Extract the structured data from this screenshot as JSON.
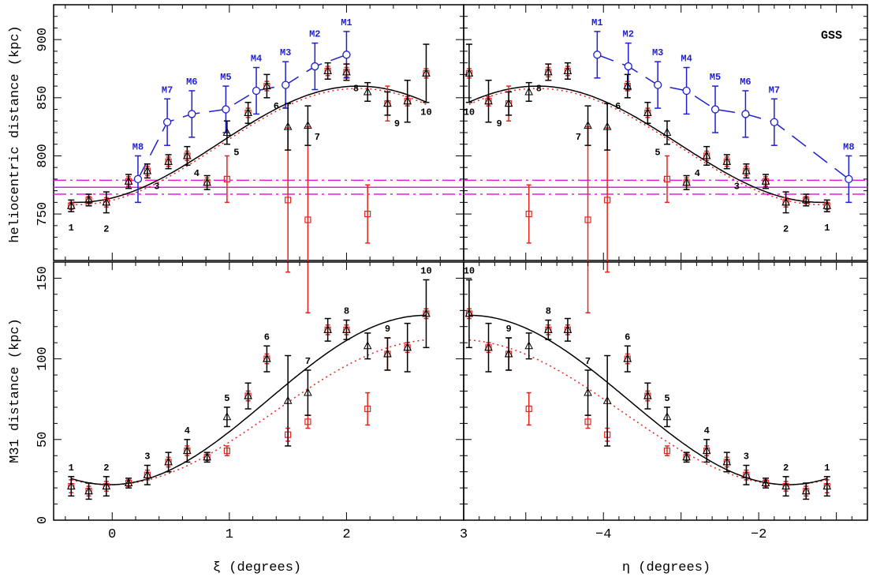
{
  "colors": {
    "black_series": "#000000",
    "red_series": "#e8231f",
    "blue_series": "#1f1fd0",
    "magenta_reference": "#e020d8"
  },
  "chart_data": [
    {
      "id": "top-left",
      "type": "scatter",
      "ylabel": "heliocentric distance (kpc)",
      "xlabel": "",
      "xlim": [
        -0.5,
        3.0
      ],
      "ylim": [
        710,
        930
      ],
      "yticks": [
        750,
        800,
        850,
        900
      ],
      "xticks": [
        0,
        1,
        2,
        3
      ],
      "annotation": "GSS",
      "reference_lines": {
        "center": 773,
        "upper": 779,
        "lower": 767
      },
      "black_points": [
        {
          "x": -0.35,
          "y": 757,
          "err": 5,
          "label": "1"
        },
        {
          "x": -0.2,
          "y": 762,
          "err": 5,
          "label": ""
        },
        {
          "x": -0.05,
          "y": 760,
          "err": 9,
          "label": "2"
        },
        {
          "x": 0.14,
          "y": 778,
          "err": 6,
          "label": ""
        },
        {
          "x": 0.3,
          "y": 787,
          "err": 6,
          "label": "3"
        },
        {
          "x": 0.48,
          "y": 795,
          "err": 6,
          "label": ""
        },
        {
          "x": 0.64,
          "y": 800,
          "err": 8,
          "label": "4"
        },
        {
          "x": 0.81,
          "y": 777,
          "err": 6,
          "label": ""
        },
        {
          "x": 0.98,
          "y": 820,
          "err": 10,
          "label": "5"
        },
        {
          "x": 1.16,
          "y": 837,
          "err": 9,
          "label": ""
        },
        {
          "x": 1.32,
          "y": 860,
          "err": 10,
          "label": "6"
        },
        {
          "x": 1.5,
          "y": 825,
          "err": 20,
          "label": ""
        },
        {
          "x": 1.67,
          "y": 826,
          "err": 17,
          "label": "7"
        },
        {
          "x": 1.84,
          "y": 873,
          "err": 7,
          "label": ""
        },
        {
          "x": 2.0,
          "y": 872,
          "err": 7,
          "label": "8"
        },
        {
          "x": 2.18,
          "y": 855,
          "err": 8,
          "label": ""
        },
        {
          "x": 2.35,
          "y": 845,
          "err": 10,
          "label": "9"
        },
        {
          "x": 2.52,
          "y": 847,
          "err": 18,
          "label": ""
        },
        {
          "x": 2.68,
          "y": 871,
          "err": 25,
          "label": "10"
        }
      ],
      "red_points": [
        {
          "x": -0.35,
          "y": 757,
          "err": 3
        },
        {
          "x": -0.2,
          "y": 762,
          "err": 3
        },
        {
          "x": -0.05,
          "y": 760,
          "err": 4
        },
        {
          "x": 0.14,
          "y": 778,
          "err": 4
        },
        {
          "x": 0.3,
          "y": 787,
          "err": 4
        },
        {
          "x": 0.48,
          "y": 795,
          "err": 4
        },
        {
          "x": 0.64,
          "y": 800,
          "err": 4
        },
        {
          "x": 0.81,
          "y": 777,
          "err": 4
        },
        {
          "x": 0.98,
          "y": 780,
          "err": 20
        },
        {
          "x": 1.16,
          "y": 837,
          "err": 4
        },
        {
          "x": 1.32,
          "y": 860,
          "err": 4
        },
        {
          "x": 1.5,
          "y": 762,
          "err": 62
        },
        {
          "x": 1.67,
          "y": 745,
          "err": 80
        },
        {
          "x": 1.84,
          "y": 873,
          "err": 4
        },
        {
          "x": 2.0,
          "y": 872,
          "err": 4
        },
        {
          "x": 2.18,
          "y": 750,
          "err": 25
        },
        {
          "x": 2.35,
          "y": 845,
          "err": 15
        },
        {
          "x": 2.52,
          "y": 847,
          "err": 4
        },
        {
          "x": 2.68,
          "y": 871,
          "err": 4
        }
      ],
      "blue_points": [
        {
          "x": 0.22,
          "y": 780,
          "err": 20,
          "label": "M8"
        },
        {
          "x": 0.47,
          "y": 829,
          "err": 20,
          "label": "M7"
        },
        {
          "x": 0.68,
          "y": 836,
          "err": 20,
          "label": "M6"
        },
        {
          "x": 0.97,
          "y": 840,
          "err": 20,
          "label": "M5"
        },
        {
          "x": 1.23,
          "y": 856,
          "err": 20,
          "label": "M4"
        },
        {
          "x": 1.48,
          "y": 861,
          "err": 20,
          "label": "M3"
        },
        {
          "x": 1.73,
          "y": 877,
          "err": 20,
          "label": "M2"
        },
        {
          "x": 2.0,
          "y": 887,
          "err": 20,
          "label": "M1"
        }
      ]
    },
    {
      "id": "top-right",
      "type": "scatter",
      "ylabel": "",
      "xlabel": "",
      "xlim": [
        -5.8,
        -0.6
      ],
      "ylim": [
        710,
        930
      ],
      "xticks": [
        -4,
        -2
      ],
      "reference_lines": {
        "center": 773,
        "upper": 779,
        "lower": 767
      },
      "black_points": [
        {
          "x": -5.73,
          "y": 871,
          "err": 25,
          "label": "10"
        },
        {
          "x": -5.48,
          "y": 847,
          "err": 18,
          "label": ""
        },
        {
          "x": -5.22,
          "y": 845,
          "err": 10,
          "label": "9"
        },
        {
          "x": -4.96,
          "y": 855,
          "err": 8,
          "label": ""
        },
        {
          "x": -4.71,
          "y": 872,
          "err": 7,
          "label": "8"
        },
        {
          "x": -4.46,
          "y": 873,
          "err": 7,
          "label": ""
        },
        {
          "x": -4.2,
          "y": 826,
          "err": 17,
          "label": "7"
        },
        {
          "x": -3.95,
          "y": 825,
          "err": 20,
          "label": ""
        },
        {
          "x": -3.69,
          "y": 860,
          "err": 10,
          "label": "6"
        },
        {
          "x": -3.43,
          "y": 837,
          "err": 9,
          "label": ""
        },
        {
          "x": -3.18,
          "y": 820,
          "err": 10,
          "label": "5"
        },
        {
          "x": -2.93,
          "y": 777,
          "err": 6,
          "label": ""
        },
        {
          "x": -2.67,
          "y": 800,
          "err": 8,
          "label": "4"
        },
        {
          "x": -2.41,
          "y": 795,
          "err": 6,
          "label": ""
        },
        {
          "x": -2.16,
          "y": 787,
          "err": 6,
          "label": "3"
        },
        {
          "x": -1.91,
          "y": 778,
          "err": 6,
          "label": ""
        },
        {
          "x": -1.65,
          "y": 760,
          "err": 9,
          "label": "2"
        },
        {
          "x": -1.39,
          "y": 762,
          "err": 5,
          "label": ""
        },
        {
          "x": -1.12,
          "y": 757,
          "err": 5,
          "label": "1"
        }
      ],
      "red_points": [
        {
          "x": -5.73,
          "y": 871,
          "err": 4
        },
        {
          "x": -5.48,
          "y": 847,
          "err": 4
        },
        {
          "x": -5.22,
          "y": 845,
          "err": 15
        },
        {
          "x": -4.96,
          "y": 750,
          "err": 25
        },
        {
          "x": -4.71,
          "y": 872,
          "err": 4
        },
        {
          "x": -4.46,
          "y": 873,
          "err": 4
        },
        {
          "x": -4.2,
          "y": 745,
          "err": 80
        },
        {
          "x": -3.95,
          "y": 762,
          "err": 62
        },
        {
          "x": -3.69,
          "y": 860,
          "err": 4
        },
        {
          "x": -3.43,
          "y": 837,
          "err": 4
        },
        {
          "x": -3.18,
          "y": 780,
          "err": 20
        },
        {
          "x": -2.93,
          "y": 777,
          "err": 4
        },
        {
          "x": -2.67,
          "y": 800,
          "err": 4
        },
        {
          "x": -2.41,
          "y": 795,
          "err": 4
        },
        {
          "x": -2.16,
          "y": 787,
          "err": 4
        },
        {
          "x": -1.91,
          "y": 778,
          "err": 4
        },
        {
          "x": -1.65,
          "y": 760,
          "err": 4
        },
        {
          "x": -1.39,
          "y": 762,
          "err": 3
        },
        {
          "x": -1.12,
          "y": 757,
          "err": 3
        }
      ],
      "blue_points": [
        {
          "x": -4.08,
          "y": 887,
          "err": 20,
          "label": "M1"
        },
        {
          "x": -3.68,
          "y": 877,
          "err": 20,
          "label": "M2"
        },
        {
          "x": -3.3,
          "y": 861,
          "err": 20,
          "label": "M3"
        },
        {
          "x": -2.93,
          "y": 856,
          "err": 20,
          "label": "M4"
        },
        {
          "x": -2.56,
          "y": 840,
          "err": 20,
          "label": "M5"
        },
        {
          "x": -2.17,
          "y": 836,
          "err": 20,
          "label": "M6"
        },
        {
          "x": -1.8,
          "y": 829,
          "err": 20,
          "label": "M7"
        },
        {
          "x": -0.84,
          "y": 780,
          "err": 20,
          "label": "M8"
        }
      ]
    },
    {
      "id": "bottom-left",
      "type": "scatter",
      "ylabel": "M31 distance (kpc)",
      "xlabel": "ξ (degrees)",
      "xlim": [
        -0.5,
        3.0
      ],
      "ylim": [
        0,
        160
      ],
      "yticks": [
        0,
        50,
        100,
        150
      ],
      "xticks": [
        0,
        1,
        2,
        3
      ],
      "black_points": [
        {
          "x": -0.35,
          "y": 21,
          "err": 6,
          "label": "1"
        },
        {
          "x": -0.2,
          "y": 18,
          "err": 5,
          "label": ""
        },
        {
          "x": -0.05,
          "y": 21,
          "err": 6,
          "label": "2"
        },
        {
          "x": 0.14,
          "y": 23,
          "err": 3,
          "label": ""
        },
        {
          "x": 0.3,
          "y": 28,
          "err": 6,
          "label": "3"
        },
        {
          "x": 0.48,
          "y": 36,
          "err": 6,
          "label": ""
        },
        {
          "x": 0.64,
          "y": 43,
          "err": 7,
          "label": "4"
        },
        {
          "x": 0.81,
          "y": 39,
          "err": 3,
          "label": ""
        },
        {
          "x": 0.98,
          "y": 64,
          "err": 6,
          "label": "5"
        },
        {
          "x": 1.16,
          "y": 77,
          "err": 8,
          "label": ""
        },
        {
          "x": 1.32,
          "y": 100,
          "err": 8,
          "label": "6"
        },
        {
          "x": 1.5,
          "y": 74,
          "err": 28,
          "label": ""
        },
        {
          "x": 1.67,
          "y": 79,
          "err": 14,
          "label": "7"
        },
        {
          "x": 1.84,
          "y": 118,
          "err": 7,
          "label": ""
        },
        {
          "x": 2.0,
          "y": 118,
          "err": 6,
          "label": "8"
        },
        {
          "x": 2.18,
          "y": 108,
          "err": 8,
          "label": ""
        },
        {
          "x": 2.35,
          "y": 103,
          "err": 10,
          "label": "9"
        },
        {
          "x": 2.52,
          "y": 107,
          "err": 15,
          "label": ""
        },
        {
          "x": 2.68,
          "y": 128,
          "err": 21,
          "label": "10"
        }
      ],
      "red_points": [
        {
          "x": -0.35,
          "y": 21,
          "err": 4
        },
        {
          "x": -0.2,
          "y": 18,
          "err": 3
        },
        {
          "x": -0.05,
          "y": 21,
          "err": 3
        },
        {
          "x": 0.14,
          "y": 23,
          "err": 2
        },
        {
          "x": 0.3,
          "y": 28,
          "err": 3
        },
        {
          "x": 0.48,
          "y": 36,
          "err": 3
        },
        {
          "x": 0.64,
          "y": 43,
          "err": 3
        },
        {
          "x": 0.81,
          "y": 39,
          "err": 2
        },
        {
          "x": 0.98,
          "y": 43,
          "err": 3
        },
        {
          "x": 1.16,
          "y": 77,
          "err": 3
        },
        {
          "x": 1.32,
          "y": 100,
          "err": 3
        },
        {
          "x": 1.5,
          "y": 53,
          "err": 4
        },
        {
          "x": 1.67,
          "y": 61,
          "err": 4
        },
        {
          "x": 1.84,
          "y": 118,
          "err": 3
        },
        {
          "x": 2.0,
          "y": 118,
          "err": 3
        },
        {
          "x": 2.18,
          "y": 69,
          "err": 10
        },
        {
          "x": 2.35,
          "y": 103,
          "err": 10
        },
        {
          "x": 2.52,
          "y": 107,
          "err": 3
        },
        {
          "x": 2.68,
          "y": 128,
          "err": 3
        }
      ]
    },
    {
      "id": "bottom-right",
      "type": "scatter",
      "ylabel": "",
      "xlabel": "η (degrees)",
      "xlim": [
        -5.8,
        -0.6
      ],
      "ylim": [
        0,
        160
      ],
      "xticks": [
        -4,
        -2
      ],
      "black_points": [
        {
          "x": -5.73,
          "y": 128,
          "err": 21,
          "label": "10"
        },
        {
          "x": -5.48,
          "y": 107,
          "err": 15,
          "label": ""
        },
        {
          "x": -5.22,
          "y": 103,
          "err": 10,
          "label": "9"
        },
        {
          "x": -4.96,
          "y": 108,
          "err": 8,
          "label": ""
        },
        {
          "x": -4.71,
          "y": 118,
          "err": 6,
          "label": "8"
        },
        {
          "x": -4.46,
          "y": 118,
          "err": 7,
          "label": ""
        },
        {
          "x": -4.2,
          "y": 79,
          "err": 14,
          "label": "7"
        },
        {
          "x": -3.95,
          "y": 74,
          "err": 28,
          "label": ""
        },
        {
          "x": -3.69,
          "y": 100,
          "err": 8,
          "label": "6"
        },
        {
          "x": -3.43,
          "y": 77,
          "err": 8,
          "label": ""
        },
        {
          "x": -3.18,
          "y": 64,
          "err": 6,
          "label": "5"
        },
        {
          "x": -2.93,
          "y": 39,
          "err": 3,
          "label": ""
        },
        {
          "x": -2.67,
          "y": 43,
          "err": 7,
          "label": "4"
        },
        {
          "x": -2.41,
          "y": 36,
          "err": 6,
          "label": ""
        },
        {
          "x": -2.16,
          "y": 28,
          "err": 6,
          "label": "3"
        },
        {
          "x": -1.91,
          "y": 23,
          "err": 3,
          "label": ""
        },
        {
          "x": -1.65,
          "y": 21,
          "err": 6,
          "label": "2"
        },
        {
          "x": -1.39,
          "y": 18,
          "err": 5,
          "label": ""
        },
        {
          "x": -1.12,
          "y": 21,
          "err": 6,
          "label": "1"
        }
      ],
      "red_points": [
        {
          "x": -5.73,
          "y": 128,
          "err": 3
        },
        {
          "x": -5.48,
          "y": 107,
          "err": 3
        },
        {
          "x": -5.22,
          "y": 103,
          "err": 10
        },
        {
          "x": -4.96,
          "y": 69,
          "err": 10
        },
        {
          "x": -4.71,
          "y": 118,
          "err": 3
        },
        {
          "x": -4.46,
          "y": 118,
          "err": 3
        },
        {
          "x": -4.2,
          "y": 61,
          "err": 4
        },
        {
          "x": -3.95,
          "y": 53,
          "err": 4
        },
        {
          "x": -3.69,
          "y": 100,
          "err": 3
        },
        {
          "x": -3.43,
          "y": 77,
          "err": 3
        },
        {
          "x": -3.18,
          "y": 43,
          "err": 3
        },
        {
          "x": -2.93,
          "y": 39,
          "err": 2
        },
        {
          "x": -2.67,
          "y": 43,
          "err": 3
        },
        {
          "x": -2.41,
          "y": 36,
          "err": 3
        },
        {
          "x": -2.16,
          "y": 28,
          "err": 3
        },
        {
          "x": -1.91,
          "y": 23,
          "err": 2
        },
        {
          "x": -1.65,
          "y": 21,
          "err": 3
        },
        {
          "x": -1.39,
          "y": 18,
          "err": 3
        },
        {
          "x": -1.12,
          "y": 21,
          "err": 4
        }
      ]
    }
  ]
}
